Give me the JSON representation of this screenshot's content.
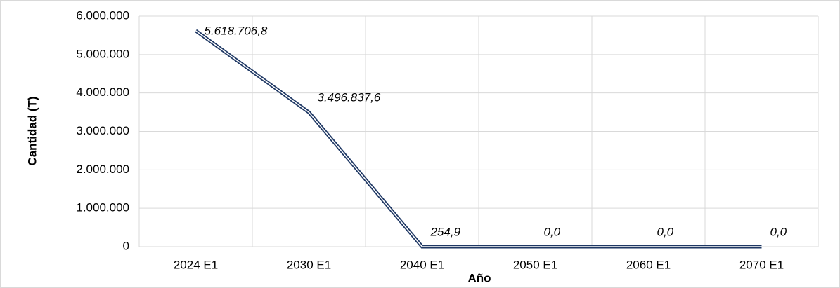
{
  "chart_data": {
    "type": "line",
    "categories": [
      "2024 E1",
      "2030 E1",
      "2040 E1",
      "2050 E1",
      "2060 E1",
      "2070 E1"
    ],
    "series": [
      {
        "color": "#1f3864",
        "values": [
          5618706.8,
          3496837.6,
          254.9,
          0,
          0,
          0
        ],
        "value_labels": [
          "5.618.706,8",
          "3.496.837,6",
          "254,9",
          "0,0",
          "0,0",
          "0,0"
        ]
      }
    ],
    "ylim": [
      0,
      6000000
    ],
    "yticks": [
      0,
      {
        "value": 1000000,
        "label": "1.000.000"
      },
      {
        "value": 2000000,
        "label": "2.000.000"
      },
      {
        "value": 3000000,
        "label": "3.000.000"
      },
      {
        "value": 4000000,
        "label": "4.000.000"
      },
      {
        "value": 5000000,
        "label": "5.000.000"
      },
      {
        "value": 6000000,
        "label": "6.000.000"
      }
    ],
    "y_label": "Cantidad (T)",
    "x_label": "Año",
    "grid": true
  }
}
